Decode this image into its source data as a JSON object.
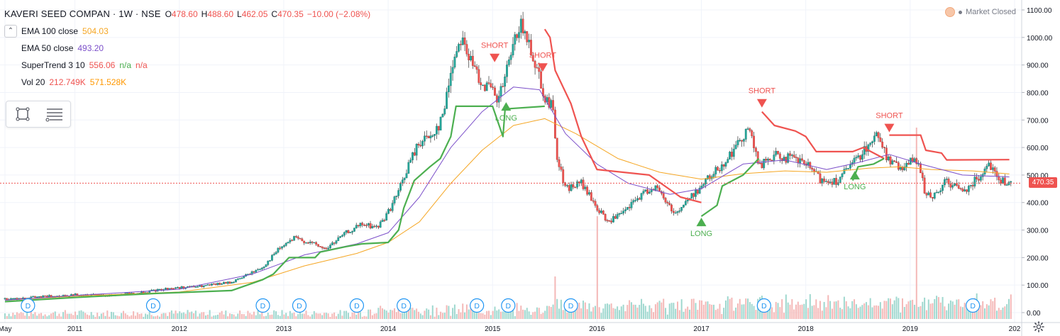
{
  "header": {
    "symbol": "KAVERI SEED COMPAN · 1W · NSE",
    "ohlc": [
      {
        "k": "O",
        "v": "478.60"
      },
      {
        "k": "H",
        "v": "488.60"
      },
      {
        "k": "L",
        "v": "462.05"
      },
      {
        "k": "C",
        "v": "470.35"
      },
      {
        "k": "",
        "v": "−10.00 (−2.08%)"
      }
    ]
  },
  "indicators": [
    {
      "label": "EMA 100 close",
      "values": [
        "504.03"
      ],
      "colors": [
        "#f5a623"
      ]
    },
    {
      "label": "EMA 50 close",
      "values": [
        "493.20"
      ],
      "colors": [
        "#7b4fc9"
      ]
    },
    {
      "label": "SuperTrend 3 10",
      "values": [
        "556.06",
        "n/a",
        "n/a"
      ],
      "colors": [
        "#ef5350",
        "#4caf50",
        "#ef5350"
      ]
    },
    {
      "label": "Vol 20",
      "values": [
        "212.749K",
        "571.528K"
      ],
      "colors": [
        "#ef5350",
        "#ff9800"
      ]
    }
  ],
  "market_status": "Market Closed",
  "last_price_tag": "470.35",
  "icons": {
    "collapse": "chevron-up-icon",
    "rect_tool": "rectangle-tool-icon",
    "lines_tool": "lines-tool-icon",
    "settings": "gear-icon",
    "market": "market-status-icon"
  },
  "chart_data": {
    "type": "candlestick",
    "timeframe": "1W",
    "x_range": [
      "2010-05",
      "2020-01"
    ],
    "x_ticks": [
      {
        "label": "May",
        "t": 2010.33
      },
      {
        "label": "2011",
        "t": 2011.0
      },
      {
        "label": "2012",
        "t": 2012.0
      },
      {
        "label": "2013",
        "t": 2013.0
      },
      {
        "label": "2014",
        "t": 2014.0
      },
      {
        "label": "2015",
        "t": 2015.0
      },
      {
        "label": "2016",
        "t": 2016.0
      },
      {
        "label": "2017",
        "t": 2017.0
      },
      {
        "label": "2018",
        "t": 2018.0
      },
      {
        "label": "2019",
        "t": 2019.0
      },
      {
        "label": "202",
        "t": 2020.0
      }
    ],
    "y_axis": {
      "min": 0,
      "max": 1100,
      "ticks": [
        "0.00",
        "100.00",
        "200.00",
        "300.00",
        "400.00",
        "500.00",
        "600.00",
        "700.00",
        "800.00",
        "900.00",
        "1000.00",
        "1100.00"
      ],
      "tick_values": [
        0,
        100,
        200,
        300,
        400,
        500,
        600,
        700,
        800,
        900,
        1000,
        1100
      ]
    },
    "last_close": 470.35,
    "close_path": [
      [
        2010.33,
        50
      ],
      [
        2010.7,
        58
      ],
      [
        2011.0,
        65
      ],
      [
        2011.3,
        62
      ],
      [
        2011.6,
        70
      ],
      [
        2011.9,
        88
      ],
      [
        2012.2,
        95
      ],
      [
        2012.5,
        110
      ],
      [
        2012.8,
        165
      ],
      [
        2012.95,
        230
      ],
      [
        2013.1,
        270
      ],
      [
        2013.25,
        255
      ],
      [
        2013.4,
        230
      ],
      [
        2013.6,
        290
      ],
      [
        2013.75,
        320
      ],
      [
        2013.9,
        310
      ],
      [
        2014.0,
        365
      ],
      [
        2014.1,
        440
      ],
      [
        2014.2,
        540
      ],
      [
        2014.3,
        620
      ],
      [
        2014.4,
        640
      ],
      [
        2014.5,
        690
      ],
      [
        2014.55,
        760
      ],
      [
        2014.6,
        880
      ],
      [
        2014.65,
        950
      ],
      [
        2014.7,
        1010
      ],
      [
        2014.8,
        900
      ],
      [
        2014.9,
        840
      ],
      [
        2015.0,
        800
      ],
      [
        2015.05,
        760
      ],
      [
        2015.1,
        830
      ],
      [
        2015.2,
        960
      ],
      [
        2015.25,
        1050
      ],
      [
        2015.35,
        980
      ],
      [
        2015.45,
        860
      ],
      [
        2015.5,
        780
      ],
      [
        2015.58,
        740
      ],
      [
        2015.62,
        560
      ],
      [
        2015.7,
        450
      ],
      [
        2015.85,
        470
      ],
      [
        2016.0,
        380
      ],
      [
        2016.1,
        330
      ],
      [
        2016.25,
        360
      ],
      [
        2016.4,
        420
      ],
      [
        2016.55,
        460
      ],
      [
        2016.65,
        410
      ],
      [
        2016.75,
        360
      ],
      [
        2016.9,
        420
      ],
      [
        2017.0,
        460
      ],
      [
        2017.1,
        500
      ],
      [
        2017.2,
        540
      ],
      [
        2017.35,
        610
      ],
      [
        2017.45,
        680
      ],
      [
        2017.55,
        530
      ],
      [
        2017.7,
        570
      ],
      [
        2017.85,
        560
      ],
      [
        2018.0,
        540
      ],
      [
        2018.15,
        480
      ],
      [
        2018.3,
        480
      ],
      [
        2018.45,
        540
      ],
      [
        2018.6,
        610
      ],
      [
        2018.7,
        650
      ],
      [
        2018.78,
        560
      ],
      [
        2018.9,
        520
      ],
      [
        2019.0,
        560
      ],
      [
        2019.1,
        520
      ],
      [
        2019.15,
        420
      ],
      [
        2019.25,
        430
      ],
      [
        2019.35,
        480
      ],
      [
        2019.5,
        440
      ],
      [
        2019.65,
        490
      ],
      [
        2019.75,
        550
      ],
      [
        2019.85,
        480
      ],
      [
        2019.95,
        470
      ]
    ],
    "series": [
      {
        "name": "EMA 100 close",
        "color": "#f5a623",
        "points": [
          [
            2010.33,
            45
          ],
          [
            2011.0,
            60
          ],
          [
            2012.0,
            75
          ],
          [
            2012.7,
            110
          ],
          [
            2013.2,
            170
          ],
          [
            2013.7,
            215
          ],
          [
            2014.0,
            255
          ],
          [
            2014.3,
            330
          ],
          [
            2014.6,
            470
          ],
          [
            2014.9,
            590
          ],
          [
            2015.2,
            680
          ],
          [
            2015.5,
            705
          ],
          [
            2015.8,
            650
          ],
          [
            2016.2,
            560
          ],
          [
            2016.6,
            510
          ],
          [
            2017.0,
            485
          ],
          [
            2017.4,
            505
          ],
          [
            2017.8,
            515
          ],
          [
            2018.2,
            510
          ],
          [
            2018.6,
            525
          ],
          [
            2018.9,
            530
          ],
          [
            2019.2,
            520
          ],
          [
            2019.6,
            515
          ],
          [
            2019.95,
            504
          ]
        ]
      },
      {
        "name": "EMA 50 close",
        "color": "#7b4fc9",
        "points": [
          [
            2010.33,
            45
          ],
          [
            2011.0,
            62
          ],
          [
            2012.0,
            85
          ],
          [
            2012.7,
            140
          ],
          [
            2013.2,
            210
          ],
          [
            2013.7,
            250
          ],
          [
            2014.0,
            290
          ],
          [
            2014.3,
            420
          ],
          [
            2014.6,
            600
          ],
          [
            2014.9,
            730
          ],
          [
            2015.2,
            820
          ],
          [
            2015.45,
            810
          ],
          [
            2015.7,
            650
          ],
          [
            2016.0,
            540
          ],
          [
            2016.3,
            470
          ],
          [
            2016.7,
            430
          ],
          [
            2017.0,
            450
          ],
          [
            2017.4,
            540
          ],
          [
            2017.8,
            555
          ],
          [
            2018.2,
            520
          ],
          [
            2018.5,
            545
          ],
          [
            2018.8,
            575
          ],
          [
            2019.1,
            540
          ],
          [
            2019.5,
            500
          ],
          [
            2019.95,
            493
          ]
        ]
      },
      {
        "name": "SuperTrend up",
        "color": "#4caf50",
        "points": [
          [
            2010.33,
            40
          ],
          [
            2011.0,
            55
          ],
          [
            2011.8,
            70
          ],
          [
            2012.5,
            80
          ],
          [
            2012.8,
            120
          ],
          [
            2012.9,
            140
          ],
          [
            2013.0,
            180
          ],
          [
            2013.05,
            200
          ],
          [
            2013.3,
            200
          ],
          [
            2013.35,
            220
          ],
          [
            2013.6,
            240
          ],
          [
            2013.75,
            250
          ],
          [
            2014.0,
            255
          ],
          [
            2014.1,
            300
          ],
          [
            2014.15,
            380
          ],
          [
            2014.25,
            480
          ],
          [
            2014.4,
            530
          ],
          [
            2014.5,
            560
          ],
          [
            2014.6,
            640
          ],
          [
            2014.65,
            750
          ],
          [
            2015.0,
            750
          ],
          [
            2015.1,
            640
          ],
          [
            2015.12,
            740
          ],
          [
            2015.5,
            750
          ]
        ]
      },
      {
        "name": "SuperTrend down",
        "color": "#ef5350",
        "points": [
          [
            2015.5,
            1030
          ],
          [
            2015.55,
            1000
          ],
          [
            2015.6,
            880
          ],
          [
            2015.75,
            760
          ],
          [
            2015.85,
            640
          ],
          [
            2016.0,
            520
          ],
          [
            2016.5,
            500
          ],
          [
            2016.8,
            420
          ],
          [
            2017.0,
            400
          ]
        ]
      },
      {
        "name": "SuperTrend up 2",
        "color": "#4caf50",
        "points": [
          [
            2017.0,
            350
          ],
          [
            2017.15,
            390
          ],
          [
            2017.2,
            460
          ],
          [
            2017.4,
            500
          ],
          [
            2017.55,
            560
          ]
        ]
      },
      {
        "name": "SuperTrend down 2",
        "color": "#ef5350",
        "points": [
          [
            2017.58,
            730
          ],
          [
            2017.7,
            680
          ],
          [
            2017.9,
            660
          ],
          [
            2018.0,
            640
          ],
          [
            2018.1,
            585
          ],
          [
            2018.45,
            585
          ],
          [
            2018.55,
            600
          ],
          [
            2018.75,
            560
          ]
        ]
      },
      {
        "name": "SuperTrend up 3",
        "color": "#4caf50",
        "points": [
          [
            2018.45,
            480
          ],
          [
            2018.5,
            530
          ],
          [
            2018.65,
            540
          ],
          [
            2018.75,
            560
          ]
        ]
      },
      {
        "name": "SuperTrend down 3",
        "color": "#ef5350",
        "points": [
          [
            2018.8,
            645
          ],
          [
            2019.1,
            645
          ],
          [
            2019.15,
            590
          ],
          [
            2019.3,
            580
          ],
          [
            2019.35,
            555
          ],
          [
            2019.95,
            556
          ]
        ]
      }
    ],
    "signals": [
      {
        "label": "SHORT",
        "t": 2015.02,
        "p": 905,
        "dir": "down"
      },
      {
        "label": "LONG",
        "t": 2015.13,
        "p": 770,
        "dir": "up"
      },
      {
        "label": "SHORT",
        "t": 2015.48,
        "p": 870,
        "dir": "down"
      },
      {
        "label": "LONG",
        "t": 2017.0,
        "p": 350,
        "dir": "up"
      },
      {
        "label": "SHORT",
        "t": 2017.58,
        "p": 740,
        "dir": "down"
      },
      {
        "label": "LONG",
        "t": 2018.47,
        "p": 520,
        "dir": "up"
      },
      {
        "label": "SHORT",
        "t": 2018.8,
        "p": 650,
        "dir": "down"
      }
    ],
    "dividends": [
      2010.55,
      2011.75,
      2012.8,
      2013.15,
      2013.7,
      2014.15,
      2014.85,
      2015.15,
      2015.75,
      2017.6,
      2019.6
    ],
    "dividend_label": "D",
    "volume_spikes": [
      [
        2016.0,
        145
      ],
      [
        2015.6,
        60
      ],
      [
        2019.07,
        270
      ],
      [
        2018.05,
        35
      ]
    ]
  }
}
